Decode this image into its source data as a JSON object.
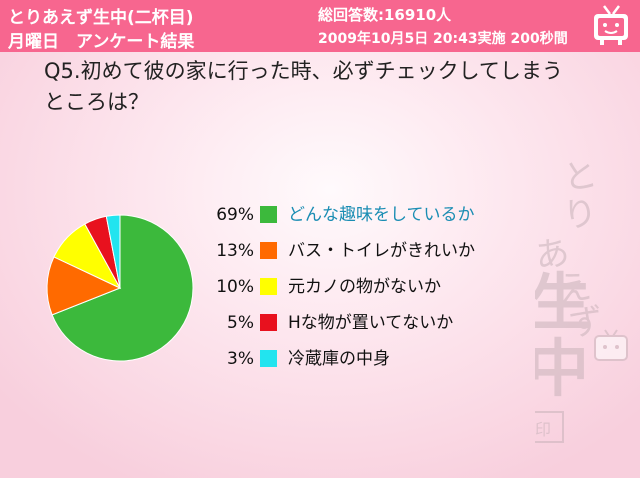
{
  "header": {
    "title_line1": "とりあえず生中(二杯目)",
    "title_line2": "月曜日　アンケート結果",
    "info_line1": "総回答数:16910人",
    "info_line2": "2009年10月5日 20:43実施 200秒間"
  },
  "question": "Q5.初めて彼の家に行った時、必ずチェックしてしまうところは？",
  "watermark_text": "とりあえず生中(二杯目)",
  "colors": {
    "header": "#f7668f",
    "green": "#3cb93c",
    "orange": "#ff6a00",
    "yellow": "#ffff00",
    "red": "#e8111e",
    "cyan": "#22e4ef"
  },
  "chart_data": {
    "type": "pie",
    "slices": [
      {
        "label": "どんな趣味をしているか",
        "value": 69,
        "pct_label": "69%",
        "color": "#3cb93c",
        "highlight": true
      },
      {
        "label": "バス・トイレがきれいか",
        "value": 13,
        "pct_label": "13%",
        "color": "#ff6a00"
      },
      {
        "label": "元カノの物がないか",
        "value": 10,
        "pct_label": "10%",
        "color": "#ffff00"
      },
      {
        "label": "Hな物が置いてないか",
        "value": 5,
        "pct_label": "5%",
        "color": "#e8111e"
      },
      {
        "label": "冷蔵庫の中身",
        "value": 3,
        "pct_label": "3%",
        "color": "#22e4ef"
      }
    ],
    "legend": "right"
  }
}
